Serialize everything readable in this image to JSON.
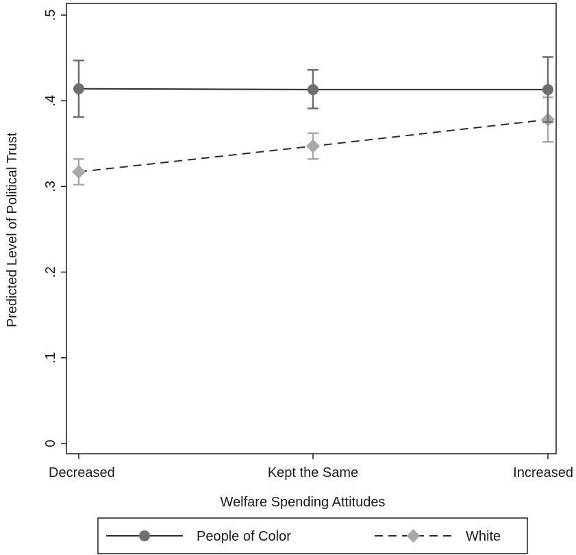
{
  "chart_data": {
    "type": "line",
    "categories": [
      "Decreased",
      "Kept the Same",
      "Increased"
    ],
    "xlabel": "Welfare Spending Attitudes",
    "ylabel": "Predicted Level of Political Trust",
    "ylim": [
      0,
      0.5
    ],
    "yticks": [
      0,
      0.1,
      0.2,
      0.3,
      0.4,
      0.5
    ],
    "ytick_labels": [
      "0",
      ".1",
      ".2",
      ".3",
      ".4",
      ".5"
    ],
    "grid": false,
    "legend_position": "bottom",
    "series": [
      {
        "name": "People of Color",
        "values": [
          0.414,
          0.413,
          0.413
        ],
        "ci_low": [
          0.381,
          0.391,
          0.375
        ],
        "ci_high": [
          0.447,
          0.436,
          0.451
        ],
        "line": "solid",
        "marker": "circle",
        "color": "#2b2b2b",
        "marker_color": "#6e6e72",
        "errorbar_color": "#6e6e72"
      },
      {
        "name": "White",
        "values": [
          0.317,
          0.347,
          0.378
        ],
        "ci_low": [
          0.302,
          0.332,
          0.352
        ],
        "ci_high": [
          0.332,
          0.362,
          0.404
        ],
        "line": "dashed",
        "marker": "diamond",
        "color": "#2b2b2b",
        "marker_color": "#a8a8aa",
        "errorbar_color": "#a8a8aa"
      }
    ]
  }
}
